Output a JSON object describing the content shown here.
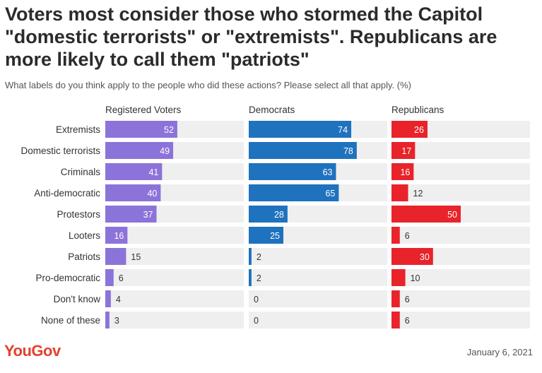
{
  "title": "Voters most consider those who stormed the Capitol \"domestic terrorists\" or \"extremists\". Republicans are more likely to call them \"patriots\"",
  "subtitle": "What labels do you think apply to the people who did these actions? Please select all that apply. (%)",
  "footer": {
    "logo": "YouGov",
    "date": "January 6, 2021"
  },
  "colors": {
    "track": "#efefef",
    "inside_label": "#ffffff",
    "outside_label": "#333333"
  },
  "chart_data": {
    "type": "bar",
    "orientation": "horizontal",
    "categories": [
      "Extremists",
      "Domestic terrorists",
      "Criminals",
      "Anti-democratic",
      "Protestors",
      "Looters",
      "Patriots",
      "Pro-democratic",
      "Don't know",
      "None of these"
    ],
    "xlim": [
      0,
      100
    ],
    "series": [
      {
        "name": "Registered Voters",
        "color": "#8c73d9",
        "values": [
          52,
          49,
          41,
          40,
          37,
          16,
          15,
          6,
          4,
          3
        ]
      },
      {
        "name": "Democrats",
        "color": "#1f72be",
        "values": [
          74,
          78,
          63,
          65,
          28,
          25,
          2,
          2,
          0,
          0
        ]
      },
      {
        "name": "Republicans",
        "color": "#e8232a",
        "values": [
          26,
          17,
          16,
          12,
          50,
          6,
          30,
          10,
          6,
          6
        ]
      }
    ]
  }
}
